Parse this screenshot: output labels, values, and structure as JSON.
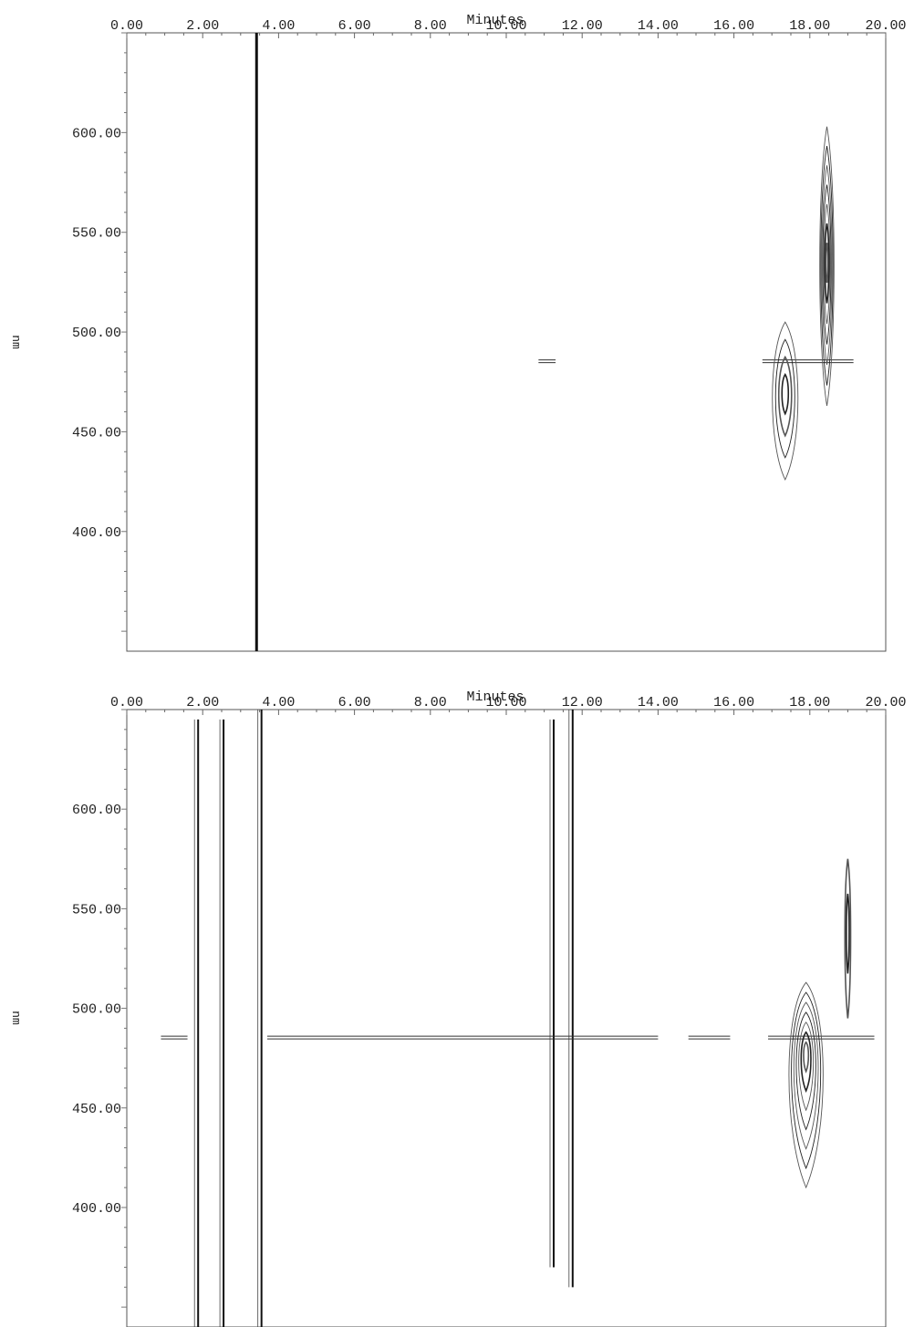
{
  "chart_data": [
    {
      "type": "contour",
      "panel": "top",
      "xlabel": "Minutes",
      "ylabel": "nm",
      "xlim": [
        0,
        20
      ],
      "ylim": [
        340,
        650
      ],
      "x_ticks": [
        "0.00",
        "2.00",
        "4.00",
        "6.00",
        "8.00",
        "10.00",
        "12.00",
        "14.00",
        "16.00",
        "18.00",
        "20.00"
      ],
      "y_ticks": [
        "400.00",
        "450.00",
        "500.00",
        "550.00",
        "600.00"
      ],
      "vertical_bands": [
        {
          "x": 3.42,
          "y_from": 340,
          "y_to": 650
        }
      ],
      "peaks": [
        {
          "x": 18.45,
          "y_center": 535,
          "x_half_width": 0.25,
          "y_min": 463,
          "y_max": 603,
          "levels": 7
        },
        {
          "x": 17.35,
          "y_center": 470,
          "x_half_width": 0.45,
          "y_min": 426,
          "y_max": 505,
          "levels": 4
        }
      ],
      "horizontal_features": [
        {
          "y": 486,
          "x_from": 16.75,
          "x_to": 19.15
        },
        {
          "y": 486,
          "x_from": 10.85,
          "x_to": 11.3
        }
      ]
    },
    {
      "type": "contour",
      "panel": "bottom",
      "xlabel": "Minutes",
      "ylabel": "nm",
      "xlim": [
        0,
        20
      ],
      "ylim": [
        340,
        650
      ],
      "x_ticks": [
        "0.00",
        "2.00",
        "4.00",
        "6.00",
        "8.00",
        "10.00",
        "12.00",
        "14.00",
        "16.00",
        "18.00",
        "20.00"
      ],
      "y_ticks": [
        "400.00",
        "450.00",
        "500.00",
        "550.00",
        "600.00"
      ],
      "vertical_bands": [
        {
          "x": 1.88,
          "y_from": 340,
          "y_to": 645
        },
        {
          "x": 2.55,
          "y_from": 340,
          "y_to": 645
        },
        {
          "x": 3.55,
          "y_from": 340,
          "y_to": 650
        },
        {
          "x": 11.75,
          "y_from": 360,
          "y_to": 650
        },
        {
          "x": 11.25,
          "y_from": 370,
          "y_to": 645
        }
      ],
      "peaks": [
        {
          "x": 17.9,
          "y_center": 478,
          "x_half_width": 0.6,
          "y_min": 410,
          "y_max": 513,
          "levels": 7
        },
        {
          "x": 19.0,
          "y_center": 540,
          "x_half_width": 0.1,
          "y_min": 495,
          "y_max": 575,
          "levels": 2
        }
      ],
      "horizontal_features": [
        {
          "y": 486,
          "x_from": 3.7,
          "x_to": 14.0
        },
        {
          "y": 486,
          "x_from": 14.8,
          "x_to": 15.9
        },
        {
          "y": 486,
          "x_from": 16.9,
          "x_to": 19.7
        },
        {
          "y": 486,
          "x_from": 0.9,
          "x_to": 1.6
        }
      ]
    }
  ]
}
